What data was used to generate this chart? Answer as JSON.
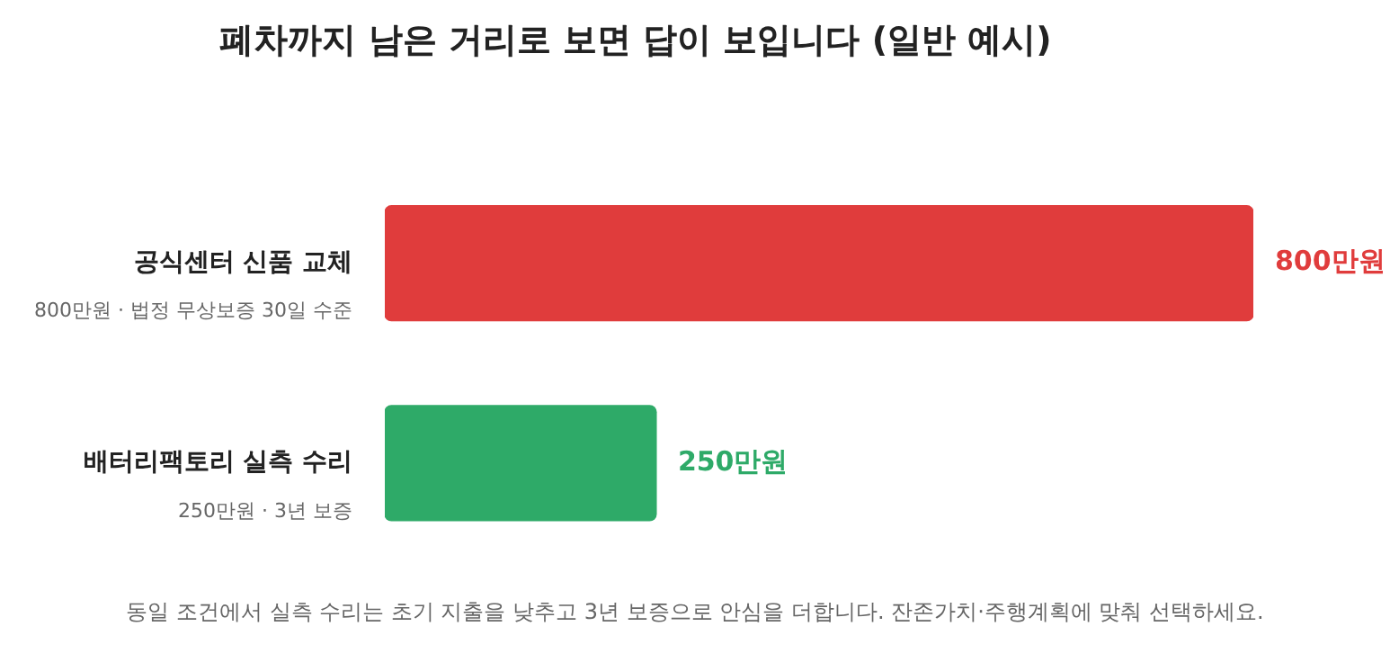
{
  "chart_data": {
    "type": "bar",
    "orientation": "horizontal",
    "title": "폐차까지 남은 거리로 보면 답이 보입니다 (일반 예시)",
    "categories": [
      "공식센터 신품 교체",
      "배터리팩토리 실측 수리"
    ],
    "values": [
      800,
      250
    ],
    "colors": [
      "#e03c3c",
      "#2eaa68"
    ],
    "value_labels": [
      "800만원",
      "250만원"
    ],
    "grid": false,
    "legend": false,
    "annotations": [
      "800만원 · 법정 무상보증 30일 수준",
      "250만원 · 3년 보증",
      "동일 조건에서 실측 수리는 초기 지출을 낮추고 3년 보증으로 안심을 더합니다. 잔존가치·주행계획에 맞춰 선택하세요."
    ]
  }
}
